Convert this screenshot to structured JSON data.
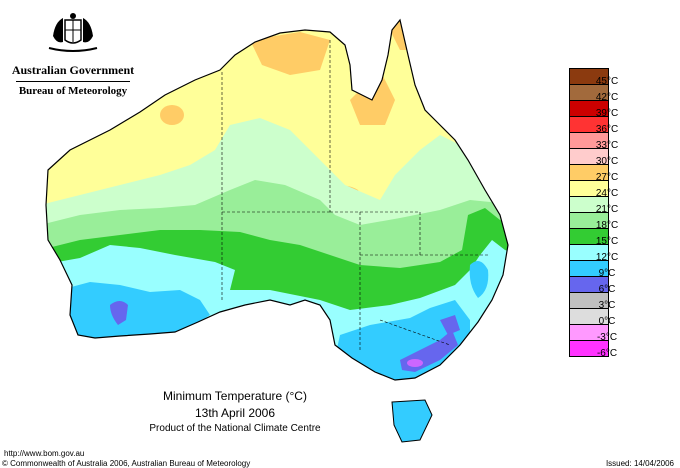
{
  "header": {
    "org_line1": "Australian Government",
    "org_line2": "Bureau of Meteorology"
  },
  "map": {
    "title": "Minimum Temperature (°C)",
    "date": "13th April 2006",
    "product": "Product of the National Climate Centre",
    "region": "Australia"
  },
  "legend": {
    "items": [
      {
        "label": "45°C",
        "color": "#8b3a0f"
      },
      {
        "label": "42°C",
        "color": "#a26a3c"
      },
      {
        "label": "39°C",
        "color": "#cc0000"
      },
      {
        "label": "36°C",
        "color": "#ff3333"
      },
      {
        "label": "33°C",
        "color": "#ff9999"
      },
      {
        "label": "30°C",
        "color": "#ffcccc"
      },
      {
        "label": "27°C",
        "color": "#ffcc66"
      },
      {
        "label": "24°C",
        "color": "#ffff99"
      },
      {
        "label": "21°C",
        "color": "#ccffcc"
      },
      {
        "label": "18°C",
        "color": "#99ee99"
      },
      {
        "label": "15°C",
        "color": "#33cc33"
      },
      {
        "label": "12°C",
        "color": "#99ffff"
      },
      {
        "label": "9°C",
        "color": "#33ccff"
      },
      {
        "label": "6°C",
        "color": "#6666ee"
      },
      {
        "label": "3°C",
        "color": "#c0c0c0"
      },
      {
        "label": "0°C",
        "color": "#dddddd"
      },
      {
        "label": "-3°C",
        "color": "#ff99ff"
      },
      {
        "label": "-6°C",
        "color": "#ff33ff"
      }
    ]
  },
  "footer": {
    "url": "http://www.bom.gov.au",
    "copyright": "© Commonwealth of Australia 2006, Australian Bureau of Meteorology",
    "issued": "Issued: 14/04/2006"
  }
}
